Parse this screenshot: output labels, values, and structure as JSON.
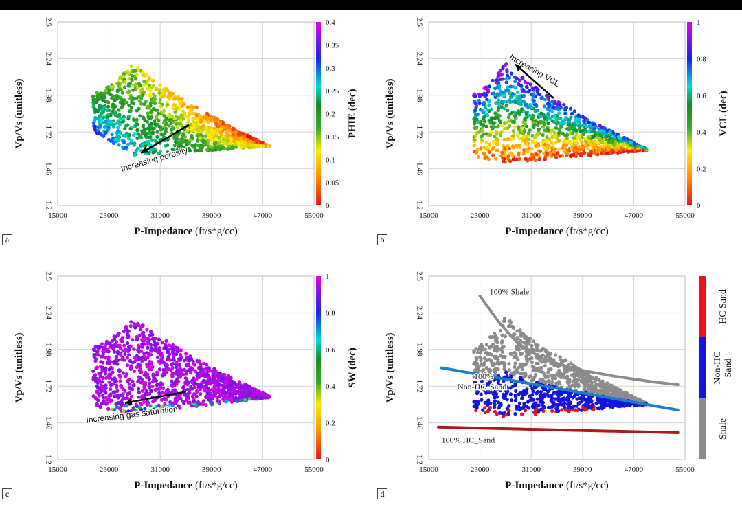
{
  "chart_data": [
    {
      "panel_label": "a",
      "type": "scatter",
      "xlabel_main": "P-Impedance",
      "xlabel_unit": "(ft/s*g/cc)",
      "ylabel": "Vp/Vs (unitless)",
      "x_ticks": [
        "15000",
        "23000",
        "31000",
        "39000",
        "47000",
        "55000"
      ],
      "y_ticks": [
        "1.2",
        "1.46",
        "1.72",
        "1.98",
        "2.24",
        "2.5"
      ],
      "xlim": [
        15000,
        55000
      ],
      "ylim": [
        1.2,
        2.5
      ],
      "colorbar": {
        "label": "PHIE (dec)",
        "ticks": [
          "0",
          "0.05",
          "0.1",
          "0.15",
          "0.2",
          "0.25",
          "0.3",
          "0.35",
          "0.4"
        ],
        "range": [
          0,
          0.4
        ],
        "scale": "rainbow"
      },
      "annotation": {
        "text": "Increasing porosity",
        "arrow_from": [
          35500,
          1.77
        ],
        "arrow_to": [
          28000,
          1.57
        ]
      },
      "cloud": {
        "points": 1300,
        "x_start": [
          20500,
          1.73,
          2.0
        ],
        "x_peak": [
          27000,
          1.55,
          2.22
        ],
        "x_end": [
          48000,
          1.62,
          1.62
        ],
        "coloring": "phie"
      }
    },
    {
      "panel_label": "b",
      "type": "scatter",
      "xlabel_main": "P-Impedance",
      "xlabel_unit": "(ft/s*g/cc)",
      "ylabel": "Vp/Vs (unitless)",
      "x_ticks": [
        "15000",
        "23000",
        "31000",
        "39000",
        "47000",
        "55000"
      ],
      "y_ticks": [
        "1.2",
        "1.46",
        "1.72",
        "1.98",
        "2.24",
        "2.5"
      ],
      "xlim": [
        15000,
        55000
      ],
      "ylim": [
        1.2,
        2.5
      ],
      "colorbar": {
        "label": "VCL (dec)",
        "ticks": [
          "0",
          "0.2",
          "0.4",
          "0.6",
          "0.8",
          "1"
        ],
        "range": [
          0,
          1
        ],
        "scale": "rainbow"
      },
      "annotation": {
        "text": "Increasing VCL",
        "arrow_from": [
          34500,
          1.96
        ],
        "arrow_to": [
          28500,
          2.2
        ]
      },
      "cloud": {
        "points": 1300,
        "x_start": [
          22000,
          1.55,
          2.0
        ],
        "x_peak": [
          27000,
          1.5,
          2.22
        ],
        "x_end": [
          49000,
          1.59,
          1.6
        ],
        "coloring": "vcl"
      }
    },
    {
      "panel_label": "c",
      "type": "scatter",
      "xlabel_main": "P-Impedance",
      "xlabel_unit": "(ft/s*g/cc)",
      "ylabel": "Vp/Vs (unitless)",
      "x_ticks": [
        "15000",
        "23000",
        "31000",
        "39000",
        "47000",
        "55000"
      ],
      "y_ticks": [
        "1.2",
        "1.46",
        "1.72",
        "1.98",
        "2.24",
        "2.5"
      ],
      "xlim": [
        15000,
        55000
      ],
      "ylim": [
        1.2,
        2.5
      ],
      "colorbar": {
        "label": "SW (dec)",
        "ticks": [
          "0",
          "0.2",
          "0.4",
          "0.6",
          "0.8",
          "1"
        ],
        "range": [
          0,
          1
        ],
        "scale": "rainbow"
      },
      "annotation": {
        "text": "Increasing gas saturation",
        "arrow_from": [
          35000,
          1.68
        ],
        "arrow_to": [
          25500,
          1.6
        ]
      },
      "cloud": {
        "points": 1300,
        "x_start": [
          20500,
          1.58,
          2.0
        ],
        "x_peak": [
          27000,
          1.52,
          2.22
        ],
        "x_end": [
          48000,
          1.64,
          1.65
        ],
        "coloring": "sw"
      }
    },
    {
      "panel_label": "d",
      "type": "scatter",
      "xlabel_main": "P-Impedance",
      "xlabel_unit": "(ft/s*g/cc)",
      "ylabel": "Vp/Vs (unitless)",
      "x_ticks": [
        "15000",
        "23000",
        "31000",
        "39000",
        "47000",
        "55000"
      ],
      "y_ticks": [
        "1.2",
        "1.46",
        "1.72",
        "1.98",
        "2.24",
        "2.5"
      ],
      "xlim": [
        15000,
        55000
      ],
      "ylim": [
        1.2,
        2.5
      ],
      "categories_bar": [
        {
          "label": "HC Sand",
          "color": "#e8141c",
          "from": 0.667,
          "to": 1.0
        },
        {
          "label": "Non-HC Sand",
          "color": "#1414e0",
          "from": 0.333,
          "to": 0.667
        },
        {
          "label": "Shale",
          "color": "#8c8c8c",
          "from": 0.0,
          "to": 0.333
        }
      ],
      "trend_lines": [
        {
          "name": "100% Shale",
          "label_text": "100% Shale",
          "color": "#8c8c8c",
          "x": [
            23000,
            26000,
            29000,
            33000,
            38000,
            44000,
            50000,
            54000
          ],
          "y": [
            2.36,
            2.17,
            2.02,
            1.91,
            1.84,
            1.79,
            1.75,
            1.73
          ]
        },
        {
          "name": "100% Non-HC_Sand",
          "label_text": [
            "100%",
            "Non-HC_Sand"
          ],
          "color": "#1a7fc8",
          "x": [
            17000,
            54000
          ],
          "y": [
            1.85,
            1.55
          ]
        },
        {
          "name": "100% HC_Sand",
          "label_text": "100% HC_Sand",
          "color": "#b01818",
          "x": [
            16500,
            54000
          ],
          "y": [
            1.43,
            1.39
          ]
        }
      ],
      "cloud": {
        "points": 1300,
        "x_start": [
          22000,
          1.55,
          2.0
        ],
        "x_peak": [
          27000,
          1.5,
          2.22
        ],
        "x_end": [
          49000,
          1.59,
          1.6
        ],
        "coloring": "facies"
      }
    }
  ]
}
